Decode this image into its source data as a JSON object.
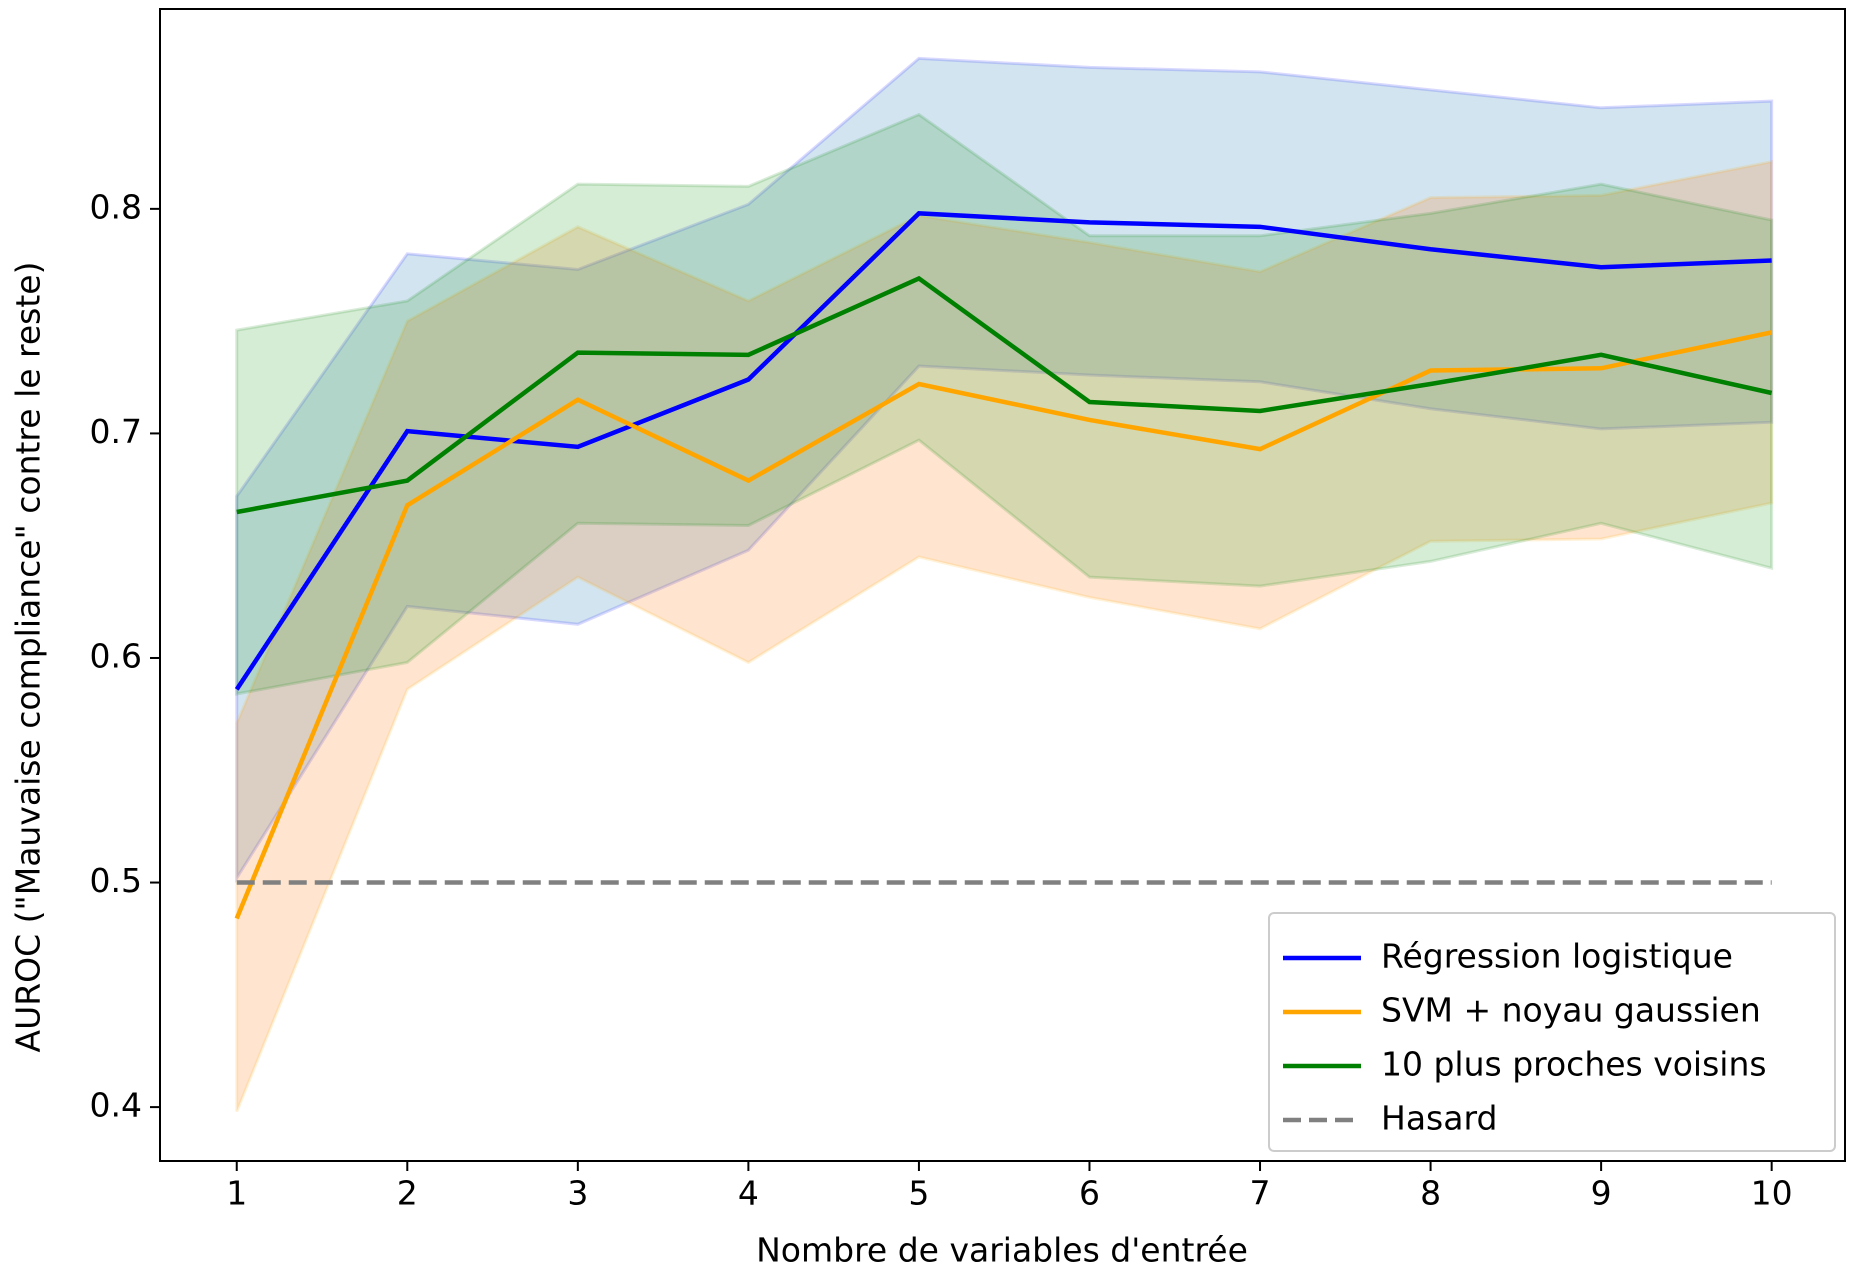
{
  "chart_data": {
    "type": "line",
    "xlabel": "Nombre de variables d'entrée",
    "ylabel": "AUROC (\"Mauvaise compliance\" contre le reste)",
    "x": [
      1,
      2,
      3,
      4,
      5,
      6,
      7,
      8,
      9,
      10
    ],
    "xlim": [
      0.55,
      10.43
    ],
    "xticks": [
      1,
      2,
      3,
      4,
      5,
      6,
      7,
      8,
      9,
      10
    ],
    "ylim": [
      0.376,
      0.889
    ],
    "yticks": [
      0.4,
      0.5,
      0.6,
      0.7,
      0.8
    ],
    "legend": "lower right",
    "series": [
      {
        "name": "Régression logistique",
        "color": "#0000ff",
        "band_color": "#1f77b4",
        "style": "solid",
        "values": [
          0.586,
          0.701,
          0.694,
          0.724,
          0.798,
          0.794,
          0.792,
          0.782,
          0.774,
          0.777
        ],
        "lower": [
          0.502,
          0.623,
          0.615,
          0.648,
          0.73,
          0.726,
          0.723,
          0.711,
          0.702,
          0.705
        ],
        "upper": [
          0.672,
          0.78,
          0.773,
          0.802,
          0.867,
          0.863,
          0.861,
          0.853,
          0.845,
          0.848
        ]
      },
      {
        "name": "SVM + noyau gaussien",
        "color": "#ffa500",
        "band_color": "#ff7f0e",
        "style": "solid",
        "values": [
          0.484,
          0.668,
          0.715,
          0.679,
          0.722,
          0.706,
          0.693,
          0.728,
          0.729,
          0.745
        ],
        "lower": [
          0.398,
          0.586,
          0.636,
          0.598,
          0.645,
          0.627,
          0.613,
          0.652,
          0.653,
          0.669
        ],
        "upper": [
          0.571,
          0.75,
          0.792,
          0.759,
          0.797,
          0.785,
          0.772,
          0.805,
          0.806,
          0.821
        ]
      },
      {
        "name": "10 plus proches voisins",
        "color": "#008000",
        "band_color": "#2ca02c",
        "style": "solid",
        "values": [
          0.665,
          0.679,
          0.736,
          0.735,
          0.769,
          0.714,
          0.71,
          0.722,
          0.735,
          0.718
        ],
        "lower": [
          0.584,
          0.598,
          0.66,
          0.659,
          0.697,
          0.636,
          0.632,
          0.643,
          0.66,
          0.64
        ],
        "upper": [
          0.746,
          0.759,
          0.811,
          0.81,
          0.842,
          0.788,
          0.788,
          0.798,
          0.811,
          0.795
        ]
      },
      {
        "name": "Hasard",
        "color": "#808080",
        "style": "dashed",
        "values": [
          0.5,
          0.5,
          0.5,
          0.5,
          0.5,
          0.5,
          0.5,
          0.5,
          0.5,
          0.5
        ]
      }
    ]
  }
}
